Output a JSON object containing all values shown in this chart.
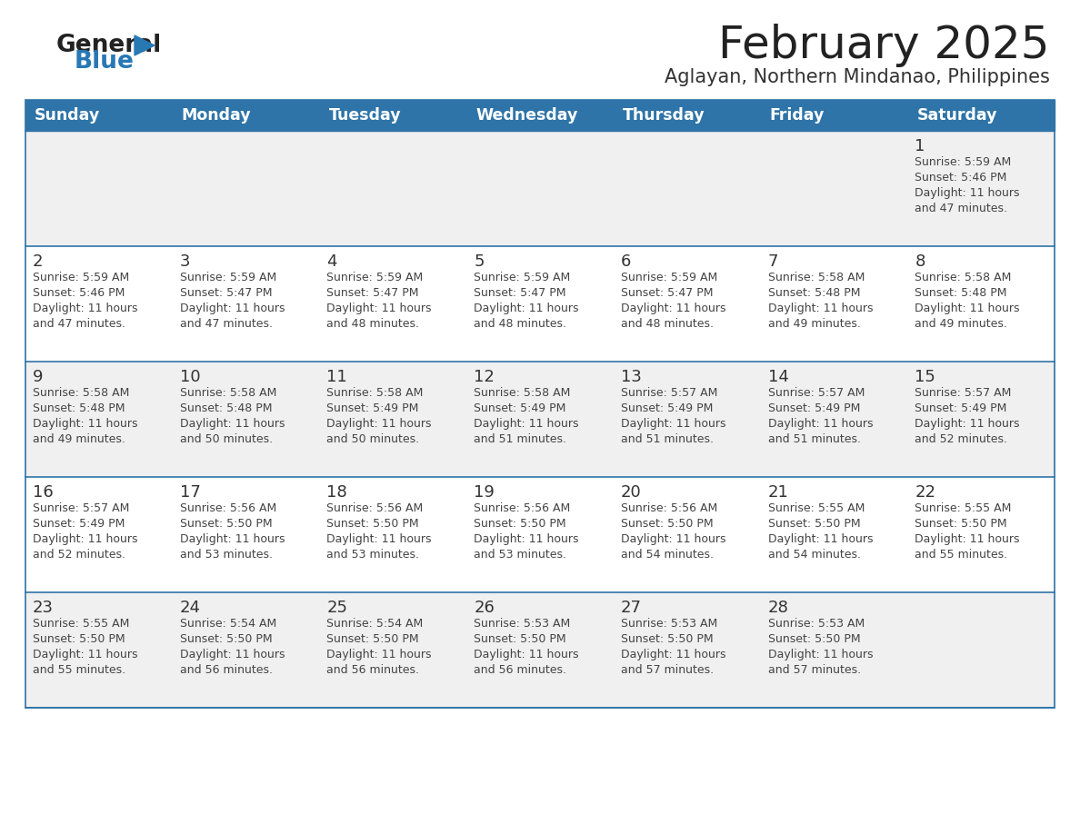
{
  "title": "February 2025",
  "subtitle": "Aglayan, Northern Mindanao, Philippines",
  "days_of_week": [
    "Sunday",
    "Monday",
    "Tuesday",
    "Wednesday",
    "Thursday",
    "Friday",
    "Saturday"
  ],
  "header_bg": "#2E74A8",
  "header_text_color": "#FFFFFF",
  "row_bg_even": "#F0F0F0",
  "row_bg_odd": "#FFFFFF",
  "separator_color": "#2E74A8",
  "day_num_color": "#333333",
  "cell_text_color": "#444444",
  "title_color": "#222222",
  "subtitle_color": "#333333",
  "logo_general_color": "#222222",
  "logo_blue_color": "#2878B4",
  "calendar_data": [
    [
      {
        "day": null,
        "sunrise": null,
        "sunset": null,
        "daylight_hours": null,
        "daylight_minutes": null
      },
      {
        "day": null,
        "sunrise": null,
        "sunset": null,
        "daylight_hours": null,
        "daylight_minutes": null
      },
      {
        "day": null,
        "sunrise": null,
        "sunset": null,
        "daylight_hours": null,
        "daylight_minutes": null
      },
      {
        "day": null,
        "sunrise": null,
        "sunset": null,
        "daylight_hours": null,
        "daylight_minutes": null
      },
      {
        "day": null,
        "sunrise": null,
        "sunset": null,
        "daylight_hours": null,
        "daylight_minutes": null
      },
      {
        "day": null,
        "sunrise": null,
        "sunset": null,
        "daylight_hours": null,
        "daylight_minutes": null
      },
      {
        "day": 1,
        "sunrise": "5:59 AM",
        "sunset": "5:46 PM",
        "daylight_hours": 11,
        "daylight_minutes": 47
      }
    ],
    [
      {
        "day": 2,
        "sunrise": "5:59 AM",
        "sunset": "5:46 PM",
        "daylight_hours": 11,
        "daylight_minutes": 47
      },
      {
        "day": 3,
        "sunrise": "5:59 AM",
        "sunset": "5:47 PM",
        "daylight_hours": 11,
        "daylight_minutes": 47
      },
      {
        "day": 4,
        "sunrise": "5:59 AM",
        "sunset": "5:47 PM",
        "daylight_hours": 11,
        "daylight_minutes": 48
      },
      {
        "day": 5,
        "sunrise": "5:59 AM",
        "sunset": "5:47 PM",
        "daylight_hours": 11,
        "daylight_minutes": 48
      },
      {
        "day": 6,
        "sunrise": "5:59 AM",
        "sunset": "5:47 PM",
        "daylight_hours": 11,
        "daylight_minutes": 48
      },
      {
        "day": 7,
        "sunrise": "5:58 AM",
        "sunset": "5:48 PM",
        "daylight_hours": 11,
        "daylight_minutes": 49
      },
      {
        "day": 8,
        "sunrise": "5:58 AM",
        "sunset": "5:48 PM",
        "daylight_hours": 11,
        "daylight_minutes": 49
      }
    ],
    [
      {
        "day": 9,
        "sunrise": "5:58 AM",
        "sunset": "5:48 PM",
        "daylight_hours": 11,
        "daylight_minutes": 49
      },
      {
        "day": 10,
        "sunrise": "5:58 AM",
        "sunset": "5:48 PM",
        "daylight_hours": 11,
        "daylight_minutes": 50
      },
      {
        "day": 11,
        "sunrise": "5:58 AM",
        "sunset": "5:49 PM",
        "daylight_hours": 11,
        "daylight_minutes": 50
      },
      {
        "day": 12,
        "sunrise": "5:58 AM",
        "sunset": "5:49 PM",
        "daylight_hours": 11,
        "daylight_minutes": 51
      },
      {
        "day": 13,
        "sunrise": "5:57 AM",
        "sunset": "5:49 PM",
        "daylight_hours": 11,
        "daylight_minutes": 51
      },
      {
        "day": 14,
        "sunrise": "5:57 AM",
        "sunset": "5:49 PM",
        "daylight_hours": 11,
        "daylight_minutes": 51
      },
      {
        "day": 15,
        "sunrise": "5:57 AM",
        "sunset": "5:49 PM",
        "daylight_hours": 11,
        "daylight_minutes": 52
      }
    ],
    [
      {
        "day": 16,
        "sunrise": "5:57 AM",
        "sunset": "5:49 PM",
        "daylight_hours": 11,
        "daylight_minutes": 52
      },
      {
        "day": 17,
        "sunrise": "5:56 AM",
        "sunset": "5:50 PM",
        "daylight_hours": 11,
        "daylight_minutes": 53
      },
      {
        "day": 18,
        "sunrise": "5:56 AM",
        "sunset": "5:50 PM",
        "daylight_hours": 11,
        "daylight_minutes": 53
      },
      {
        "day": 19,
        "sunrise": "5:56 AM",
        "sunset": "5:50 PM",
        "daylight_hours": 11,
        "daylight_minutes": 53
      },
      {
        "day": 20,
        "sunrise": "5:56 AM",
        "sunset": "5:50 PM",
        "daylight_hours": 11,
        "daylight_minutes": 54
      },
      {
        "day": 21,
        "sunrise": "5:55 AM",
        "sunset": "5:50 PM",
        "daylight_hours": 11,
        "daylight_minutes": 54
      },
      {
        "day": 22,
        "sunrise": "5:55 AM",
        "sunset": "5:50 PM",
        "daylight_hours": 11,
        "daylight_minutes": 55
      }
    ],
    [
      {
        "day": 23,
        "sunrise": "5:55 AM",
        "sunset": "5:50 PM",
        "daylight_hours": 11,
        "daylight_minutes": 55
      },
      {
        "day": 24,
        "sunrise": "5:54 AM",
        "sunset": "5:50 PM",
        "daylight_hours": 11,
        "daylight_minutes": 56
      },
      {
        "day": 25,
        "sunrise": "5:54 AM",
        "sunset": "5:50 PM",
        "daylight_hours": 11,
        "daylight_minutes": 56
      },
      {
        "day": 26,
        "sunrise": "5:53 AM",
        "sunset": "5:50 PM",
        "daylight_hours": 11,
        "daylight_minutes": 56
      },
      {
        "day": 27,
        "sunrise": "5:53 AM",
        "sunset": "5:50 PM",
        "daylight_hours": 11,
        "daylight_minutes": 57
      },
      {
        "day": 28,
        "sunrise": "5:53 AM",
        "sunset": "5:50 PM",
        "daylight_hours": 11,
        "daylight_minutes": 57
      },
      {
        "day": null,
        "sunrise": null,
        "sunset": null,
        "daylight_hours": null,
        "daylight_minutes": null
      }
    ]
  ]
}
